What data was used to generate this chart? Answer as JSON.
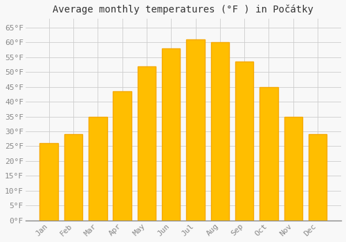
{
  "title": "Average monthly temperatures (°F ) in Počátky",
  "months": [
    "Jan",
    "Feb",
    "Mar",
    "Apr",
    "May",
    "Jun",
    "Jul",
    "Aug",
    "Sep",
    "Oct",
    "Nov",
    "Dec"
  ],
  "values": [
    26,
    29,
    35,
    43.5,
    52,
    58,
    61,
    60,
    53.5,
    45,
    35,
    29
  ],
  "bar_color_face": "#FFBE00",
  "bar_color_edge": "#F5A800",
  "background_color": "#F8F8F8",
  "grid_color": "#CCCCCC",
  "text_color": "#888888",
  "title_color": "#333333",
  "ylim": [
    0,
    68
  ],
  "yticks": [
    0,
    5,
    10,
    15,
    20,
    25,
    30,
    35,
    40,
    45,
    50,
    55,
    60,
    65
  ],
  "title_fontsize": 10,
  "tick_fontsize": 8,
  "font_family": "monospace",
  "bar_width": 0.75
}
